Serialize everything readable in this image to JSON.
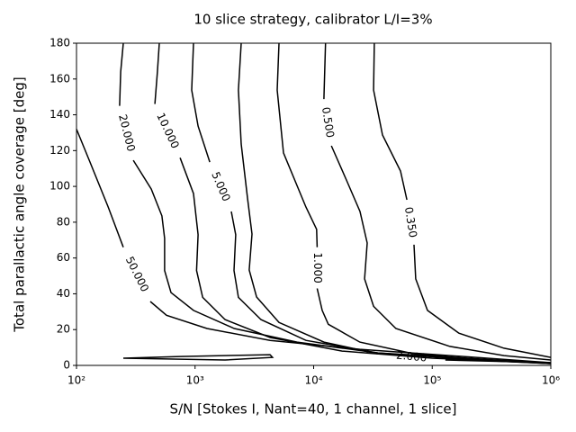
{
  "chart_data": {
    "type": "contour",
    "title": "10 slice strategy, calibrator L/I=3%",
    "xlabel": "S/N [Stokes I, Nant=40, 1 channel, 1 slice]",
    "ylabel": "Total parallactic angle coverage [deg]",
    "xscale": "log",
    "xlim": [
      100,
      1000000
    ],
    "ylim": [
      0,
      180
    ],
    "xticks": [
      {
        "value": 100,
        "label": "10²"
      },
      {
        "value": 1000,
        "label": "10³"
      },
      {
        "value": 10000,
        "label": "10⁴"
      },
      {
        "value": 100000,
        "label": "10⁵"
      },
      {
        "value": 1000000,
        "label": "10⁶"
      }
    ],
    "yticks": [
      0,
      20,
      40,
      60,
      80,
      100,
      120,
      140,
      160,
      180
    ],
    "color": "#000000",
    "contours": [
      {
        "level": 50,
        "value_label": "50.000",
        "x": [
          100,
          130,
          185,
          248,
          null,
          419,
          574,
          1260,
          4290,
          24500,
          141000,
          1000000,
          null,
          248,
          747,
          4290,
          4500,
          1790,
          248
        ],
        "y": [
          132,
          113.6,
          88.5,
          66,
          null,
          35.7,
          28,
          20.6,
          14,
          9,
          5.5,
          1.5,
          null,
          4,
          5,
          6,
          4.5,
          3,
          4
        ]
      },
      {
        "level": 20,
        "value_label": "20.000",
        "x": [
          248,
          236,
          231,
          null,
          301,
          427,
          525,
          553,
          553,
          627,
          970,
          2140,
          7240,
          34700,
          200000,
          1000000
        ],
        "y": [
          180,
          164,
          145,
          null,
          114.6,
          98.5,
          83.5,
          71,
          53,
          40.7,
          30.7,
          20.6,
          13,
          7,
          4,
          1
        ]
      },
      {
        "level": 10,
        "value_label": "10.000",
        "x": [
          499,
          481,
          458,
          null,
          747,
          970,
          1060,
          1030,
          1160,
          1790,
          4290,
          17400,
          100000,
          1000000
        ],
        "y": [
          180,
          164,
          146,
          null,
          116,
          96,
          73,
          53,
          38,
          25.6,
          15.6,
          8,
          4,
          1
        ]
      },
      {
        "level": 5,
        "value_label": "5.000",
        "x": [
          970,
          937,
          1060,
          1330,
          null,
          2020,
          2200,
          2130,
          2320,
          3600,
          8600,
          34700,
          239000,
          1000000
        ],
        "y": [
          180,
          153.8,
          133.7,
          113.6,
          null,
          86,
          73,
          53,
          38,
          25.6,
          14,
          7,
          3,
          1
        ]
      },
      {
        "level": 2,
        "value_label": "2.000",
        "x": [
          2450,
          2320,
          2450,
          2770,
          3020,
          2860,
          3300,
          5100,
          12200,
          34700,
          null,
          129000,
          1000000
        ],
        "y": [
          180,
          153.8,
          123.7,
          93.5,
          73.4,
          53.3,
          38.2,
          24,
          13,
          6.5,
          null,
          3,
          1.5
        ]
      },
      {
        "level": 1,
        "value_label": "1.000",
        "x": [
          5100,
          4930,
          5570,
          8610,
          10600,
          10700,
          null,
          10700,
          11800,
          13300,
          24500,
          70100,
          284000,
          1000000
        ],
        "y": [
          180,
          153.8,
          118.7,
          88.5,
          76,
          66,
          null,
          43,
          30.7,
          23,
          13,
          6.5,
          3,
          1.5
        ]
      },
      {
        "level": 0.5,
        "value_label": "0.500",
        "x": [
          12600,
          12200,
          null,
          14100,
          18900,
          24600,
          28300,
          26900,
          32000,
          49400,
          141000,
          403000,
          1000000
        ],
        "y": [
          180,
          148.8,
          null,
          122.7,
          103.6,
          86,
          68.4,
          48.3,
          33,
          20.6,
          10.6,
          5.5,
          3
        ]
      },
      {
        "level": 0.35,
        "value_label": "0.350",
        "x": [
          32500,
          32000,
          38100,
          54000,
          61100,
          null,
          70200,
          72600,
          91200,
          168000,
          403000,
          1000000
        ],
        "y": [
          180,
          153.8,
          128.7,
          108.6,
          92.5,
          null,
          67.4,
          48.3,
          30.7,
          18,
          9.6,
          4.5
        ]
      }
    ]
  }
}
